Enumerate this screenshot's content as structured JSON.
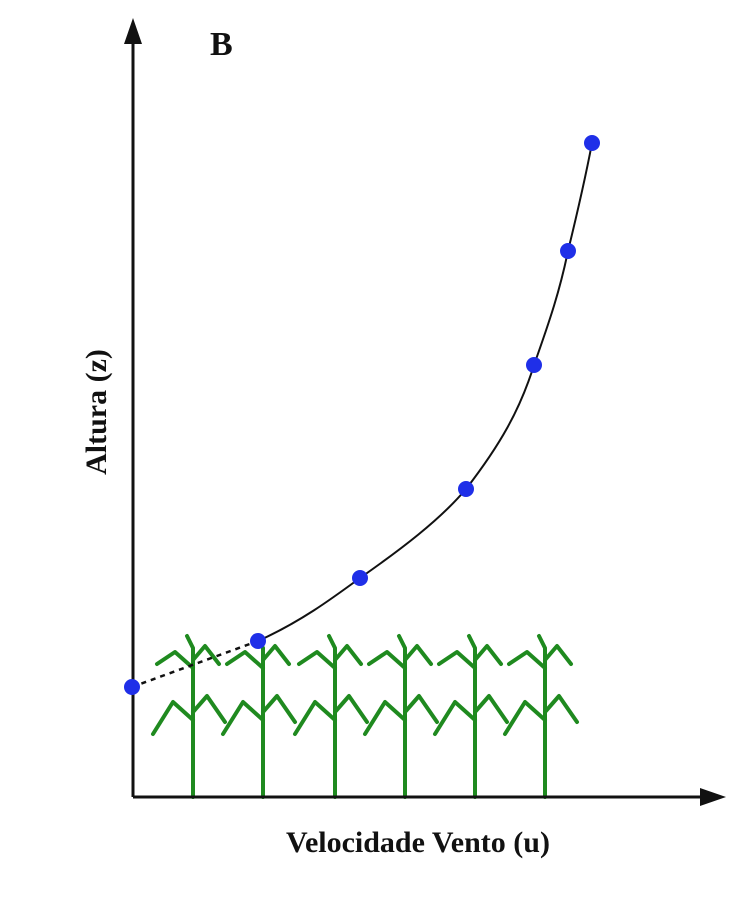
{
  "panel_label": "B",
  "y_axis_label": "Altura (z)",
  "x_axis_label": "Velocidade Vento (u)"
}
